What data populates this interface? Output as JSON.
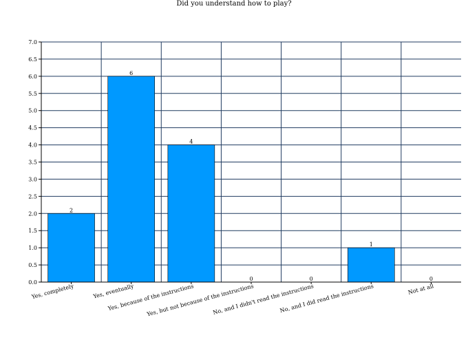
{
  "chart_data": {
    "type": "bar",
    "title": "Did you understand how to play?",
    "xlabel": "",
    "ylabel": "",
    "categories": [
      "Yes, completely",
      "Yes, eventually",
      "Yes, because of the instructions",
      "Yes, but not because of the instructions",
      "No, and I didn't read the instructions",
      "No, and I did read the instructions",
      "Not at all"
    ],
    "values": [
      2,
      6,
      4,
      0,
      0,
      1,
      0
    ],
    "ylim": [
      0,
      7
    ],
    "yticks": [
      "0.0",
      "0.5",
      "1.0",
      "1.5",
      "2.0",
      "2.5",
      "3.0",
      "3.5",
      "4.0",
      "4.5",
      "5.0",
      "5.5",
      "6.0",
      "6.5",
      "7.0"
    ],
    "grid": true,
    "legend": "none",
    "bar_color": "#0099ff",
    "bar_edge_color": "#000000",
    "grid_color": "#1f3a5f"
  }
}
